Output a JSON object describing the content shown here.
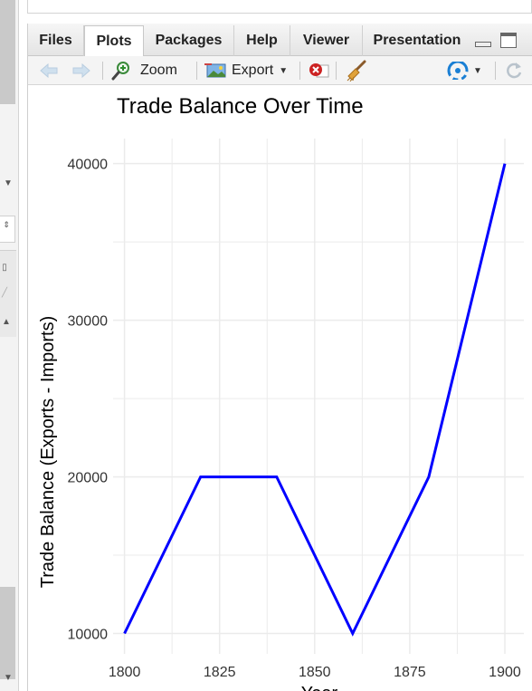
{
  "tabs": [
    {
      "label": "Files",
      "active": false
    },
    {
      "label": "Plots",
      "active": true
    },
    {
      "label": "Packages",
      "active": false
    },
    {
      "label": "Help",
      "active": false
    },
    {
      "label": "Viewer",
      "active": false
    },
    {
      "label": "Presentation",
      "active": false
    }
  ],
  "toolbar": {
    "zoom_label": "Zoom",
    "export_label": "Export"
  },
  "colors": {
    "line": "#0000ff",
    "grid": "#ebebeb",
    "accent_refresh": "#1a7fd4",
    "remove_red": "#cc2222"
  },
  "chart_data": {
    "type": "line",
    "title": "Trade Balance Over Time",
    "xlabel": "Year",
    "ylabel": "Trade Balance (Exports - Imports)",
    "x": [
      1800,
      1820,
      1840,
      1860,
      1880,
      1900
    ],
    "series": [
      {
        "values": [
          10000,
          20000,
          20000,
          10000,
          20000,
          40000
        ]
      }
    ],
    "xticks": [
      1800,
      1825,
      1850,
      1875,
      1900
    ],
    "yticks": [
      10000,
      20000,
      30000,
      40000
    ],
    "xlim": [
      1797,
      1905
    ],
    "ylim": [
      8700,
      41600
    ],
    "grid": true,
    "legend": "none"
  }
}
